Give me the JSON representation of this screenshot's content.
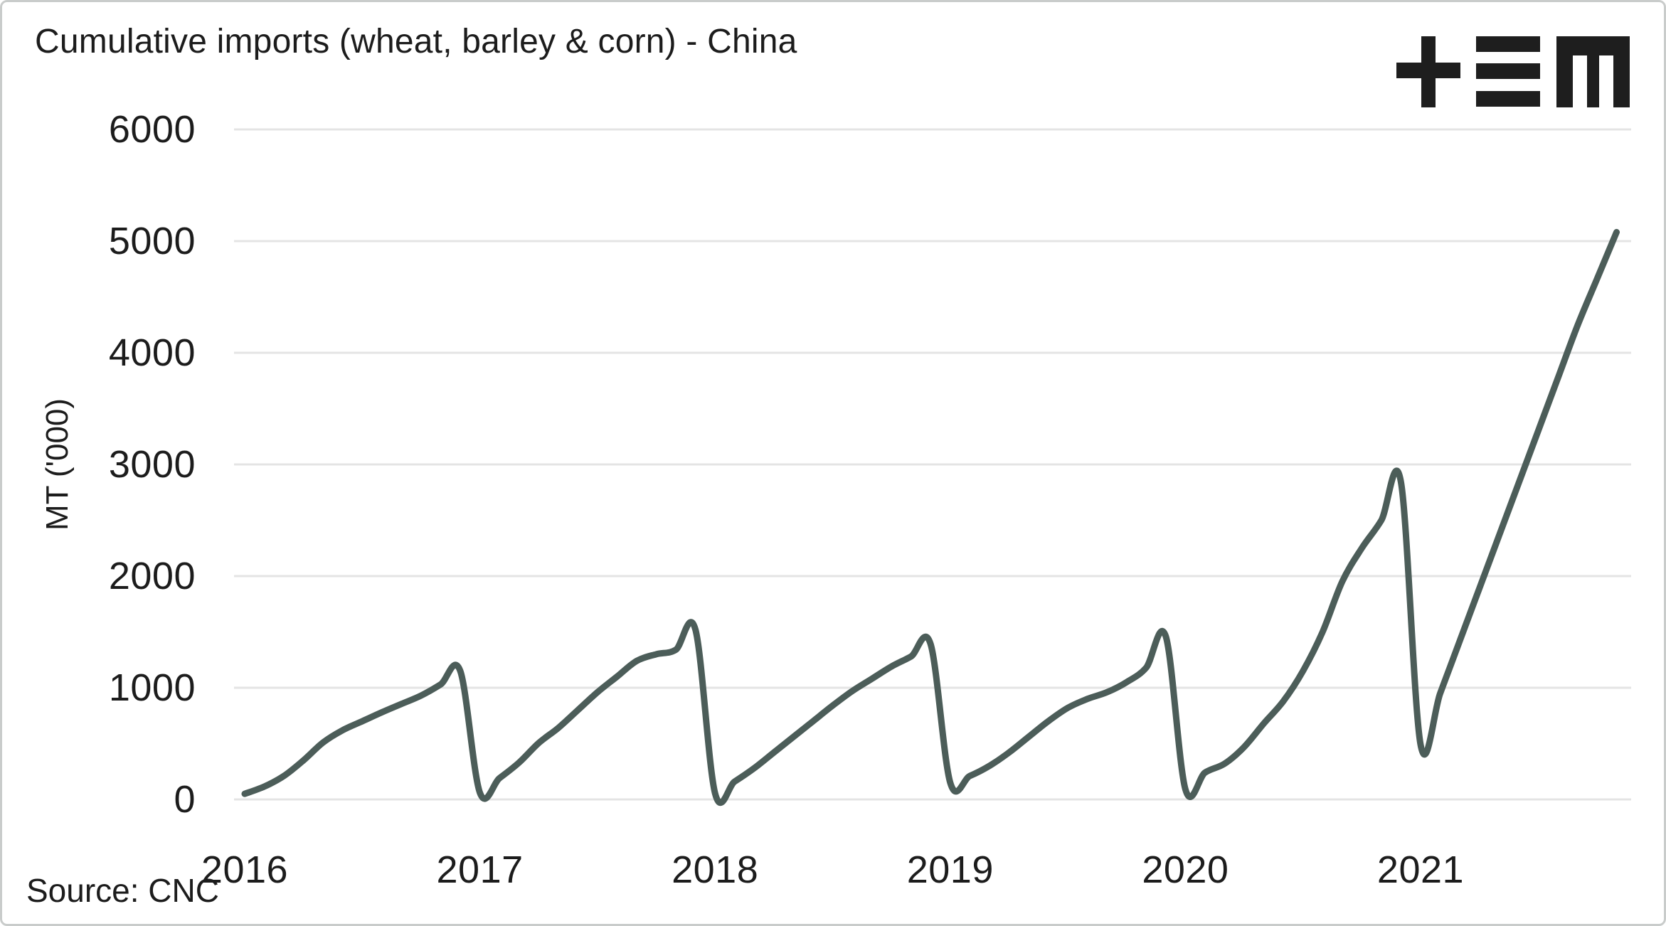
{
  "chart_data": {
    "type": "line",
    "title": "Cumulative imports (wheat, barley & corn) - China",
    "ylabel": "MT ('000)",
    "source": "Source: CNC",
    "logo": "tem-logo",
    "x_tick_labels": [
      "2016",
      "2017",
      "2018",
      "2019",
      "2020",
      "2021"
    ],
    "y_tick_labels": [
      "0",
      "1000",
      "2000",
      "3000",
      "4000",
      "5000",
      "6000"
    ],
    "ylim": [
      0,
      6000
    ],
    "grid": true,
    "legend": "none",
    "series": [
      {
        "name": "cumulative-imports-wheat-barley-corn-china",
        "start_month": "2016-01",
        "unit": "MT ('000)",
        "values_by_year": {
          "2016": [
            50,
            115,
            210,
            350,
            510,
            620,
            700,
            780,
            855,
            930,
            1030,
            1150
          ],
          "2017": [
            60,
            190,
            330,
            505,
            640,
            800,
            960,
            1100,
            1240,
            1300,
            1340,
            1520
          ],
          "2018": [
            55,
            160,
            280,
            420,
            560,
            700,
            840,
            970,
            1080,
            1190,
            1280,
            1390
          ],
          "2019": [
            150,
            210,
            300,
            420,
            560,
            700,
            820,
            900,
            960,
            1050,
            1180,
            1460
          ],
          "2020": [
            90,
            240,
            320,
            470,
            680,
            880,
            1150,
            1500,
            1950,
            2250,
            2500,
            2840
          ],
          "2021": [
            490,
            950,
            1420,
            1890,
            2360,
            2830,
            3300,
            3770,
            4240,
            4660,
            5080
          ]
        }
      }
    ],
    "colors": {
      "line": "#4c5d59",
      "grid": "#e4e4e4",
      "text": "#1c1c1c",
      "logo": "#1e1e1e",
      "border": "#c9cccb",
      "background": "#ffffff"
    }
  }
}
